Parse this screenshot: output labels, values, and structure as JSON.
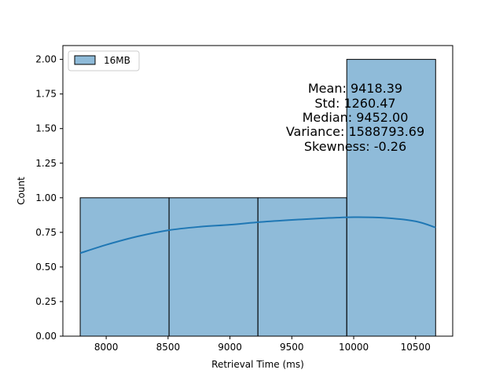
{
  "chart_data": {
    "type": "histogram",
    "xlabel": "Retrieval Time (ms)",
    "ylabel": "Count",
    "xlim": [
      7650,
      10800
    ],
    "ylim": [
      0,
      2.1
    ],
    "xticks": [
      8000,
      8500,
      9000,
      9500,
      10000,
      10500
    ],
    "xtick_labels": [
      "8000",
      "8500",
      "9000",
      "9500",
      "10000",
      "10500"
    ],
    "yticks": [
      0,
      0.25,
      0.5,
      0.75,
      1.0,
      1.25,
      1.5,
      1.75,
      2.0
    ],
    "ytick_labels": [
      "0.00",
      "0.25",
      "0.50",
      "0.75",
      "1.00",
      "1.25",
      "1.50",
      "1.75",
      "2.00"
    ],
    "grid": false,
    "legend_position": "top-left",
    "series": [
      {
        "name": "16MB",
        "color": "#1f77b4",
        "bars": [
          {
            "x0": 7790,
            "x1": 8508,
            "count": 1
          },
          {
            "x0": 8508,
            "x1": 9226,
            "count": 1
          },
          {
            "x0": 9226,
            "x1": 9944,
            "count": 1
          },
          {
            "x0": 9944,
            "x1": 10662,
            "count": 2
          }
        ],
        "kde": {
          "x": [
            7790,
            8000,
            8250,
            8500,
            8750,
            9000,
            9250,
            9500,
            9750,
            10000,
            10250,
            10500,
            10662
          ],
          "y": [
            0.6,
            0.66,
            0.72,
            0.765,
            0.79,
            0.805,
            0.825,
            0.84,
            0.852,
            0.86,
            0.855,
            0.83,
            0.785
          ]
        }
      }
    ],
    "annotation": [
      "Mean: 9418.39",
      "Std: 1260.47",
      "Median: 9452.00",
      "Variance: 1588793.69",
      "Skewness: -0.26"
    ]
  }
}
